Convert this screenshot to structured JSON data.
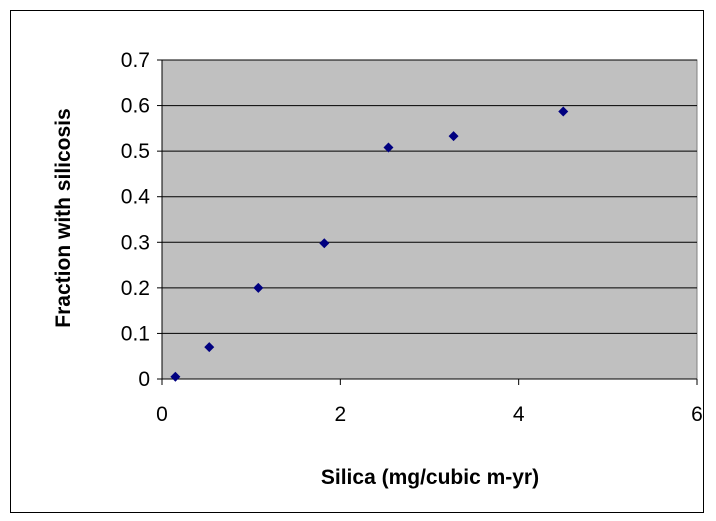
{
  "chart_data": {
    "type": "scatter",
    "title": "",
    "xlabel": "Silica (mg/cubic m-yr)",
    "ylabel": "Fraction with silicosis",
    "xlim": [
      0,
      6
    ],
    "ylim": [
      0,
      0.7
    ],
    "x_ticks": [
      "0",
      "2",
      "4",
      "6"
    ],
    "y_ticks": [
      "0",
      "0.1",
      "0.2",
      "0.3",
      "0.4",
      "0.5",
      "0.6",
      "0.7"
    ],
    "grid": "horizontal",
    "legend": "none",
    "plot_background": "#c0c0c0",
    "marker_color": "#000080",
    "marker_shape": "diamond",
    "series": [
      {
        "points": [
          {
            "x": 0.15,
            "y": 0.005
          },
          {
            "x": 0.53,
            "y": 0.07
          },
          {
            "x": 1.08,
            "y": 0.2
          },
          {
            "x": 1.82,
            "y": 0.298
          },
          {
            "x": 2.54,
            "y": 0.508
          },
          {
            "x": 3.27,
            "y": 0.533
          },
          {
            "x": 4.5,
            "y": 0.587
          }
        ]
      }
    ]
  }
}
